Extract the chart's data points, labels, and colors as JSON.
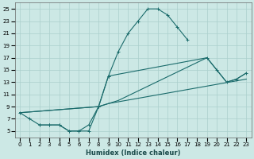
{
  "xlabel": "Humidex (Indice chaleur)",
  "bg_color": "#cce8e5",
  "grid_color": "#aacfcc",
  "line_color": "#1a6b6b",
  "xlim": [
    -0.5,
    23.5
  ],
  "ylim": [
    4,
    26
  ],
  "xticks": [
    0,
    1,
    2,
    3,
    4,
    5,
    6,
    7,
    8,
    9,
    10,
    11,
    12,
    13,
    14,
    15,
    16,
    17,
    18,
    19,
    20,
    21,
    22,
    23
  ],
  "yticks": [
    5,
    7,
    9,
    11,
    13,
    15,
    17,
    19,
    21,
    23,
    25
  ],
  "line1_x": [
    0,
    1,
    2,
    3,
    4,
    5,
    6,
    7,
    8,
    9,
    10,
    11,
    12,
    13,
    14,
    15,
    16,
    17
  ],
  "line1_y": [
    8,
    7,
    6,
    6,
    6,
    5,
    5,
    6,
    9,
    14,
    18,
    21,
    23,
    25,
    25,
    24,
    22,
    20
  ],
  "line2_x": [
    2,
    3,
    4,
    5,
    6,
    7,
    8,
    9,
    19,
    20,
    21,
    22,
    23
  ],
  "line2_y": [
    6,
    6,
    6,
    5,
    5,
    5,
    9,
    14,
    17,
    15,
    13,
    13.5,
    14.5
  ],
  "line3_x": [
    0,
    8,
    9,
    10,
    19,
    20,
    21,
    22,
    23
  ],
  "line3_y": [
    8,
    9,
    9.5,
    10,
    17,
    15,
    13,
    13.5,
    14.5
  ],
  "line4_x": [
    0,
    8,
    9,
    23
  ],
  "line4_y": [
    8,
    9,
    9.5,
    13.5
  ],
  "figsize": [
    3.2,
    2.0
  ],
  "dpi": 100
}
